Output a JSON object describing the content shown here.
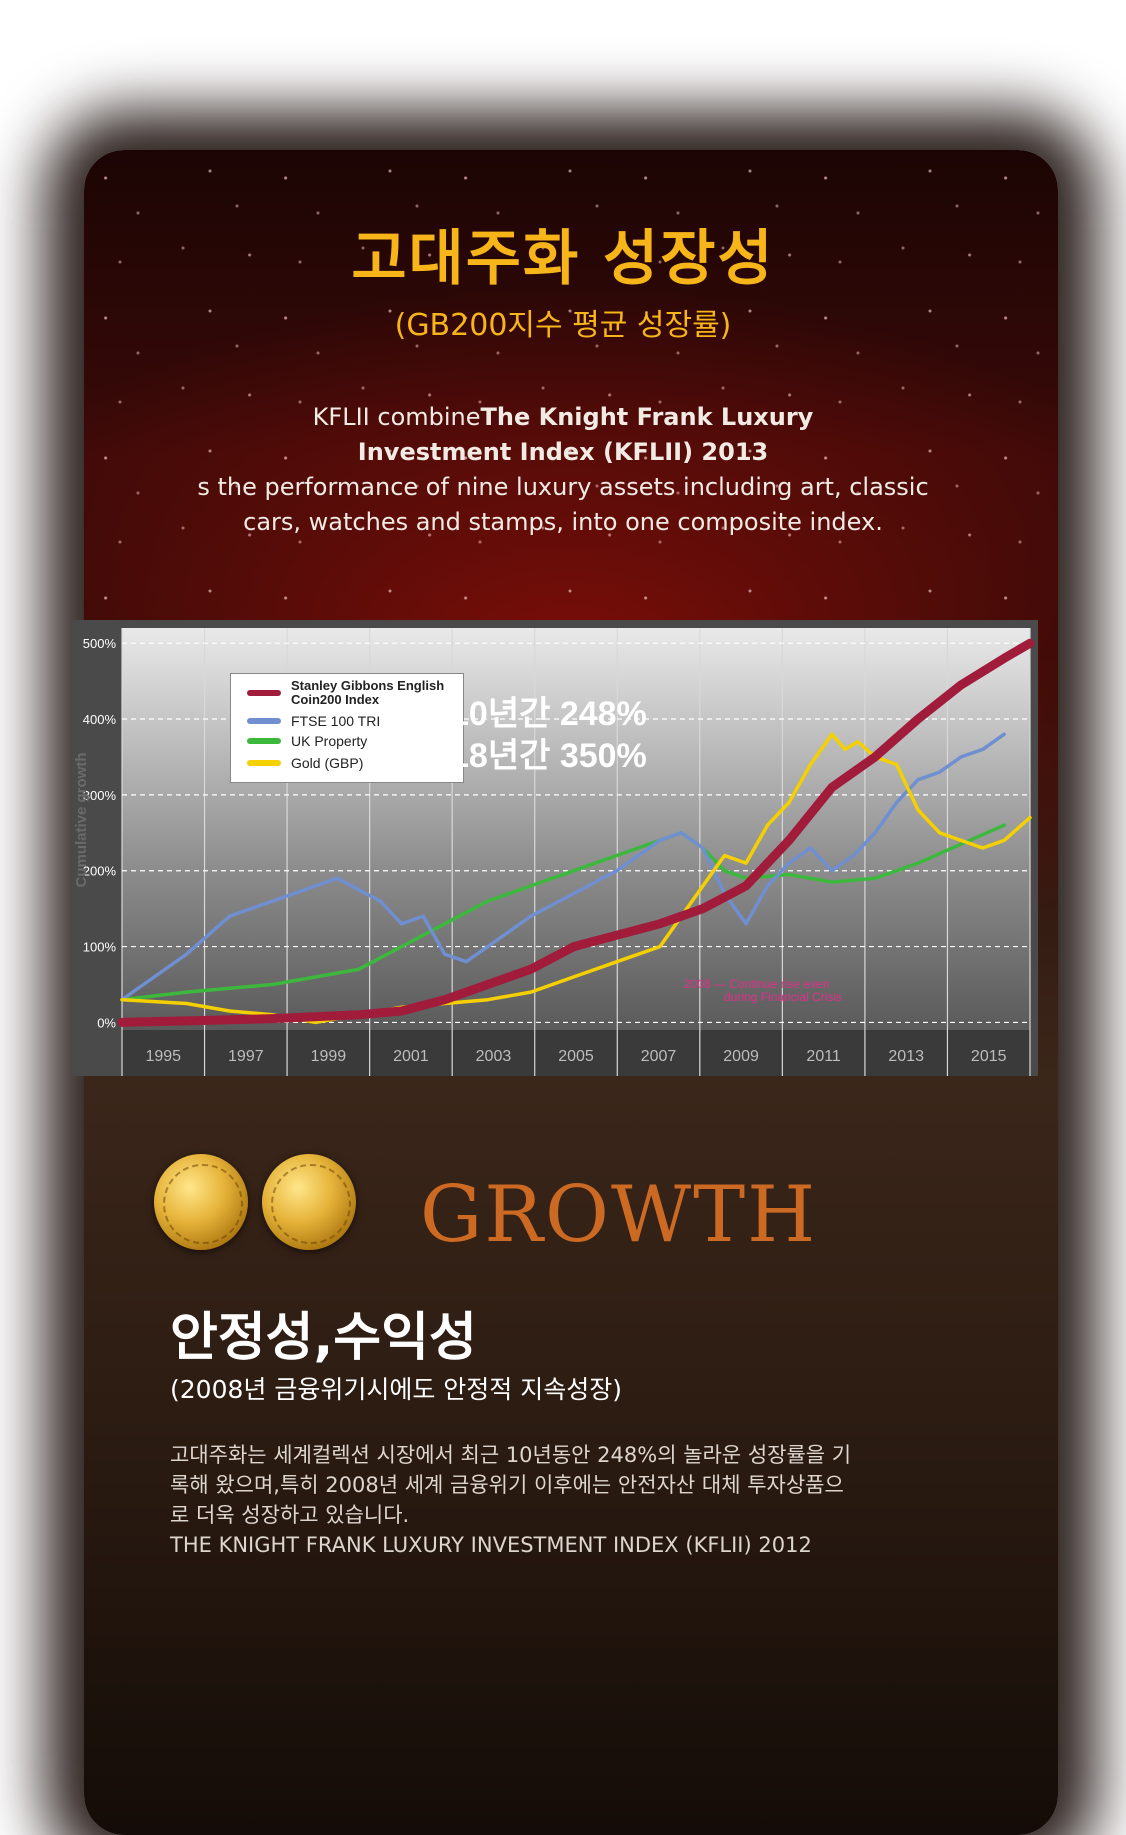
{
  "header": {
    "title": "고대주화 성장성",
    "subtitle": "(GB200지수 평균 성장률)",
    "intro_pre": "KFLII combine",
    "intro_bold_1": "The Knight Frank Luxury",
    "intro_bold_2": "Investment Index (KFLII) 2013",
    "intro_line_3": "s the performance of nine luxury assets  including art, classic",
    "intro_line_4": "cars, watches and stamps, into one composite index."
  },
  "chart_data": {
    "type": "line",
    "ylabel": "Cumulative growth",
    "xlabel": "",
    "xlim": [
      1994.5,
      2015.6
    ],
    "ylim": [
      -10,
      520
    ],
    "grid": true,
    "x_tick_labels": [
      "1995",
      "1997",
      "1999",
      "2001",
      "2003",
      "2005",
      "2007",
      "2009",
      "2011",
      "2013",
      "2015"
    ],
    "y_tick_labels": [
      "0%",
      "100%",
      "200%",
      "300%",
      "400%",
      "500%"
    ],
    "y_ticks": [
      0,
      100,
      200,
      300,
      400,
      500
    ],
    "legend_placement": "top-left",
    "series": [
      {
        "name": "Stanley Gibbons English Coin200 Index",
        "color": "#a01c3a",
        "x": [
          1994.5,
          1996,
          1998,
          2000,
          2001,
          2002,
          2003,
          2004,
          2005,
          2006,
          2007,
          2008,
          2009,
          2010,
          2011,
          2012,
          2013,
          2014,
          2015,
          2015.6
        ],
        "y": [
          0,
          2,
          5,
          10,
          15,
          30,
          50,
          70,
          100,
          115,
          130,
          150,
          180,
          240,
          310,
          350,
          400,
          445,
          480,
          500
        ]
      },
      {
        "name": "FTSE 100 TRI",
        "color": "#6f8fd0",
        "x": [
          1994.5,
          1995,
          1996,
          1997,
          1998,
          1999,
          1999.5,
          2000,
          2000.5,
          2001,
          2001.5,
          2002,
          2002.5,
          2003,
          2004,
          2005,
          2006,
          2007,
          2007.5,
          2008,
          2008.5,
          2009,
          2009.5,
          2010,
          2010.5,
          2011,
          2011.5,
          2012,
          2012.5,
          2013,
          2013.5,
          2014,
          2014.5,
          2015
        ],
        "y": [
          30,
          50,
          90,
          140,
          160,
          180,
          190,
          175,
          160,
          130,
          140,
          90,
          80,
          100,
          140,
          170,
          200,
          240,
          250,
          230,
          170,
          130,
          180,
          210,
          230,
          200,
          220,
          250,
          290,
          320,
          330,
          350,
          360,
          380
        ]
      },
      {
        "name": "UK Property",
        "color": "#3cb83c",
        "x": [
          1994.5,
          1996,
          1998,
          2000,
          2001,
          2002,
          2003,
          2004,
          2005,
          2006,
          2007,
          2007.5,
          2008,
          2008.5,
          2009,
          2010,
          2011,
          2012,
          2013,
          2014,
          2015
        ],
        "y": [
          30,
          40,
          50,
          70,
          100,
          130,
          160,
          180,
          200,
          220,
          240,
          250,
          230,
          200,
          190,
          195,
          185,
          190,
          210,
          235,
          260
        ]
      },
      {
        "name": "Gold (GBP)",
        "color": "#f5d000",
        "x": [
          1994.5,
          1996,
          1997,
          1998,
          1999,
          2000,
          2001,
          2002,
          2003,
          2004,
          2005,
          2006,
          2007,
          2007.5,
          2008,
          2008.5,
          2009,
          2009.5,
          2010,
          2010.5,
          2011,
          2011.3,
          2011.6,
          2012,
          2012.5,
          2013,
          2013.5,
          2014,
          2014.5,
          2015,
          2015.6
        ],
        "y": [
          30,
          25,
          15,
          10,
          0,
          10,
          20,
          25,
          30,
          40,
          60,
          80,
          100,
          140,
          180,
          220,
          210,
          260,
          290,
          340,
          380,
          360,
          370,
          350,
          340,
          280,
          250,
          240,
          230,
          240,
          270
        ]
      }
    ],
    "callouts": [
      "10년간 248%",
      "18년간 350%"
    ],
    "annotation": [
      "2008 — Continue rise even",
      "during Financial Crisis"
    ]
  },
  "growth_section": {
    "label": "GROWTH",
    "heading": "안정성,수익성",
    "subheading": "(2008년 금융위기시에도 안정적 지속성장)",
    "para_line_1": "고대주화는 세계컬렉션 시장에서 최근 10년동안 248%의 놀라운 성장률을 기",
    "para_line_2": "록해 왔으며,특히 2008년 세계 금융위기 이후에는 안전자산 대체 투자상품으",
    "para_line_3": "로 더욱 성장하고 있습니다.",
    "source": "THE KNIGHT FRANK LUXURY INVESTMENT INDEX (KFLII) 2012"
  }
}
